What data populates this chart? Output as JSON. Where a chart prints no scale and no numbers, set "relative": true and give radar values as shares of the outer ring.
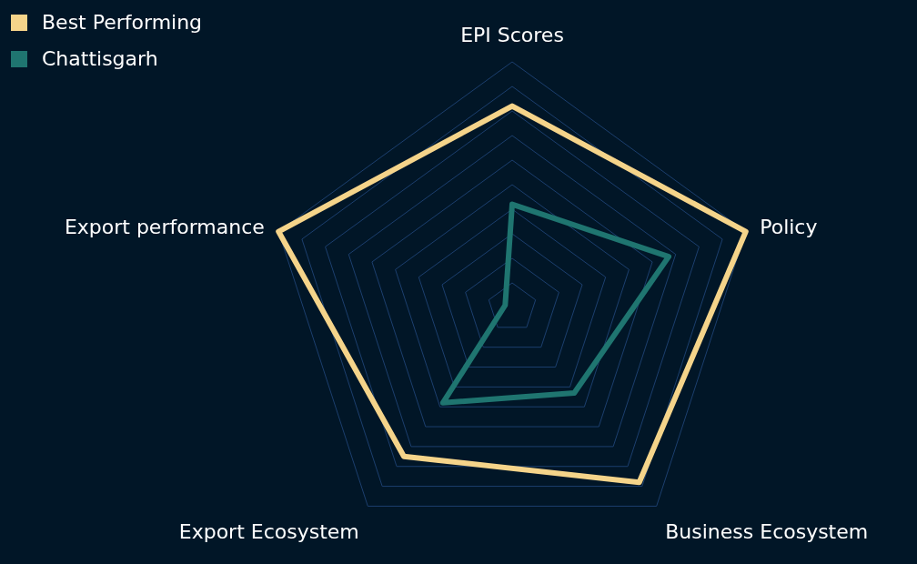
{
  "chart_data": {
    "type": "radar",
    "relative": true,
    "grid": true,
    "legend": "top left",
    "categories": [
      "EPI Scores",
      "Policy",
      "Business Ecosystem",
      "Export Ecosystem",
      "Export performance"
    ],
    "series": [
      {
        "name": "Best Performing",
        "color": "#f5d48a",
        "values": [
          0.82,
          1.0,
          0.88,
          0.75,
          1.0
        ]
      },
      {
        "name": "Chattisgarh",
        "color": "#1f7570",
        "values": [
          0.42,
          0.67,
          0.43,
          0.48,
          0.03
        ]
      }
    ]
  }
}
